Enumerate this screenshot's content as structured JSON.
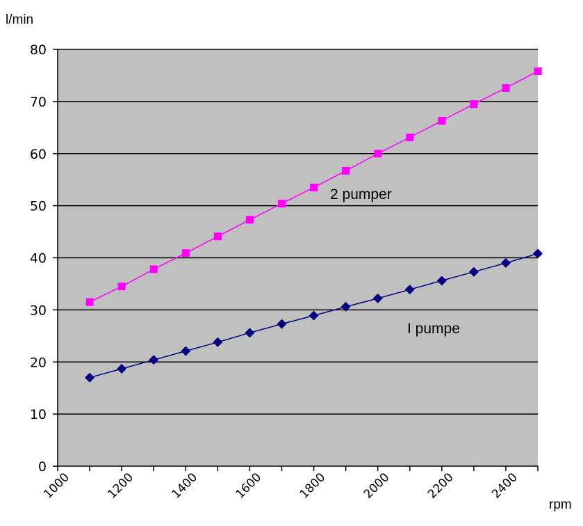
{
  "chart_data": {
    "type": "line",
    "ylabel": "l/min",
    "xlabel": "rpm",
    "xlim": [
      1000,
      2500
    ],
    "ylim": [
      0,
      80
    ],
    "x_ticks": [
      1000,
      1200,
      1400,
      1600,
      1800,
      2000,
      2200,
      2400
    ],
    "y_ticks": [
      0,
      10,
      20,
      30,
      40,
      50,
      60,
      70,
      80
    ],
    "grid": "horizontal",
    "background": "#c0c0c0",
    "x": [
      1100,
      1200,
      1300,
      1400,
      1500,
      1600,
      1700,
      1800,
      1900,
      2000,
      2100,
      2200,
      2300,
      2400,
      2500
    ],
    "series": [
      {
        "name": "1 pumpe",
        "color": "#000080",
        "marker": "diamond",
        "values": [
          17,
          18.7,
          20.4,
          22.1,
          23.8,
          25.6,
          27.3,
          28.9,
          30.6,
          32.2,
          33.9,
          35.6,
          37.3,
          39,
          40.8
        ]
      },
      {
        "name": "2 pumper",
        "color": "#ff00ff",
        "marker": "square",
        "values": [
          31.5,
          34.5,
          37.8,
          40.9,
          44.1,
          47.3,
          50.4,
          53.5,
          56.7,
          60,
          63.1,
          66.3,
          69.5,
          72.6,
          75.8
        ]
      }
    ],
    "annotations": [
      {
        "text": "2 pumper",
        "series": "2 pumper"
      },
      {
        "text": "I pumpe",
        "series": "1 pumpe"
      }
    ]
  }
}
